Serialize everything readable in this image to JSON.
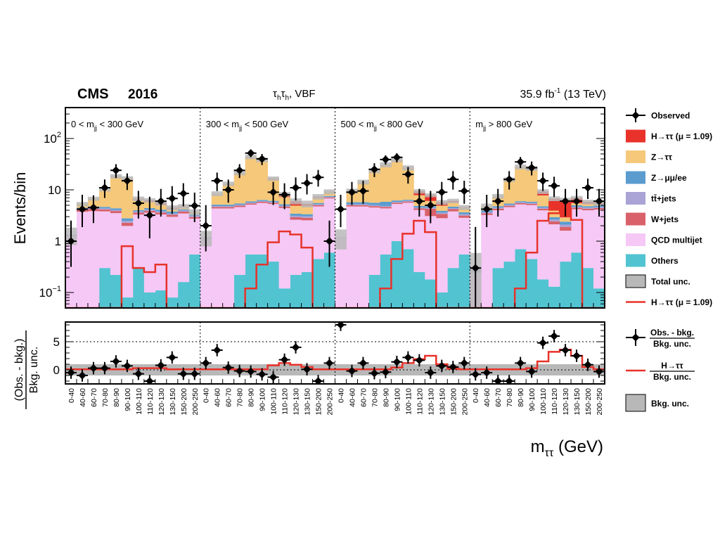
{
  "header": {
    "experiment": "CMS",
    "year": "2016",
    "channel_tau1": "τ",
    "channel_sub1": "h",
    "channel_tau2": "τ",
    "channel_sub2": "h",
    "channel_suffix": ", VBF",
    "lumi_value": "35.9 fb",
    "lumi_exp": "-1",
    "lumi_energy": " (13 TeV)"
  },
  "axes": {
    "ylabel_top": "Events/bin",
    "ylabel_bottom_num": "(Obs. - bkg.)",
    "ylabel_bottom_den": "Bkg. unc.",
    "xlabel_main": "m",
    "xlabel_sub": "ττ",
    "xlabel_unit": " (GeV)",
    "top_ticks": [
      {
        "value": 0.1,
        "base": "10",
        "exp": "−1",
        "plain": ""
      },
      {
        "value": 1,
        "base": "",
        "exp": "",
        "plain": "1"
      },
      {
        "value": 10,
        "base": "",
        "exp": "",
        "plain": "10"
      },
      {
        "value": 100,
        "base": "10",
        "exp": "2",
        "plain": ""
      }
    ],
    "bottom_ticks": [
      "0",
      "5"
    ],
    "bin_labels": [
      "0-40",
      "40-60",
      "60-70",
      "70-80",
      "80-90",
      "90-100",
      "100-110",
      "110-120",
      "120-130",
      "130-150",
      "150-200",
      "200-250"
    ]
  },
  "regions": [
    {
      "pre": "0 < m",
      "sub": "jj",
      "post": " < 300 GeV"
    },
    {
      "pre": "300 < m",
      "sub": "jj",
      "post": " < 500 GeV"
    },
    {
      "pre": "500 < m",
      "sub": "jj",
      "post": " < 800 GeV"
    },
    {
      "pre": "m",
      "sub": "jj",
      "post": " > 800 GeV"
    }
  ],
  "legend_top": [
    {
      "label": "Observed",
      "kind": "marker"
    },
    {
      "label": "H→ττ (μ = 1.09)",
      "kind": "fill",
      "color": "#e8322a"
    },
    {
      "label": "Z→ττ",
      "kind": "fill",
      "color": "#f5c87a"
    },
    {
      "label": "Z→μμ/ee",
      "kind": "fill",
      "color": "#5a9cd0"
    },
    {
      "label": "tt̄+jets",
      "kind": "fill",
      "color": "#a9a3d6"
    },
    {
      "label": "W+jets",
      "kind": "fill",
      "color": "#d9616a"
    },
    {
      "label": "QCD multijet",
      "kind": "fill",
      "color": "#f5c8f5"
    },
    {
      "label": "Others",
      "kind": "fill",
      "color": "#52c3d1"
    },
    {
      "label": "Total unc.",
      "kind": "fill",
      "color": "#b8b8b8"
    },
    {
      "label": "H→ττ (μ = 1.09)",
      "kind": "line",
      "color": "#e8322a"
    }
  ],
  "legend_bottom": [
    {
      "num": "Obs. - bkg.",
      "den": "Bkg. unc.",
      "kind": "marker"
    },
    {
      "num": "H→ττ",
      "den": "Bkg. unc.",
      "kind": "line",
      "color": "#e8322a"
    },
    {
      "label": "Bkg. unc.",
      "kind": "fill",
      "color": "#b8b8b8"
    }
  ],
  "chart_data": {
    "type": "bar",
    "stacked": true,
    "yscale": "log",
    "ylim": [
      0.05,
      400
    ],
    "ratio_ylim": [
      -2.5,
      8.5
    ],
    "bins_per_region": 12,
    "grid": false,
    "legend_placement": "right",
    "colors": {
      "others": "#52c3d1",
      "qcd": "#f5c8f5",
      "wjets": "#d9616a",
      "ttjets": "#a9a3d6",
      "zll": "#5a9cd0",
      "ztt": "#f5c87a",
      "htt": "#e8322a",
      "unc": "#b8b8b8"
    },
    "series": [
      {
        "name": "Others",
        "key": "others",
        "values": [
          0.04,
          0.04,
          0.04,
          0.3,
          0.22,
          0.08,
          0.3,
          0.1,
          0.11,
          0.08,
          0.16,
          0.55,
          0.04,
          0.04,
          0.04,
          0.22,
          0.55,
          0.55,
          0.4,
          0.12,
          0.22,
          0.25,
          0.45,
          0.6,
          0.04,
          0.04,
          0.04,
          0.22,
          0.55,
          1.0,
          0.7,
          0.25,
          0.18,
          0.1,
          0.3,
          0.55,
          0.04,
          0.04,
          0.3,
          0.4,
          0.7,
          0.45,
          0.18,
          0.13,
          0.4,
          0.6,
          0.3,
          0.12
        ]
      },
      {
        "name": "QCD multijet",
        "key": "qcd",
        "values": [
          1.2,
          3.7,
          3.8,
          3.5,
          3.3,
          1.9,
          3.0,
          3.5,
          3.2,
          2.9,
          3.3,
          2.2,
          1.1,
          4.3,
          4.3,
          4.4,
          4.6,
          5.0,
          4.9,
          4.3,
          2.4,
          2.3,
          4.3,
          6.2,
          1.1,
          4.7,
          4.7,
          4.3,
          3.8,
          4.3,
          4.9,
          3.8,
          2.9,
          2.7,
          3.5,
          2.3,
          0.2,
          3.2,
          3.7,
          4.2,
          4.5,
          4.6,
          3.8,
          2.0,
          1.2,
          3.6,
          3.7,
          4.0
        ]
      },
      {
        "name": "W+jets",
        "key": "wjets",
        "values": [
          0,
          0.35,
          0.4,
          0.35,
          0.35,
          0.3,
          0.3,
          0.3,
          0.3,
          0.3,
          0.3,
          0.2,
          0,
          0.3,
          0.3,
          0.3,
          0.3,
          0.3,
          0.3,
          0.3,
          0.3,
          0.3,
          0.3,
          0.3,
          0,
          0.3,
          0.3,
          0.3,
          0.3,
          0.3,
          0.3,
          0.3,
          1.2,
          0.6,
          0.4,
          0.3,
          0,
          0.25,
          0.3,
          0.3,
          0.3,
          0.3,
          0.3,
          0.3,
          0.3,
          0.3,
          0.3,
          0.3
        ]
      },
      {
        "name": "tt̄+jets",
        "key": "ttjets",
        "values": [
          0.1,
          0.2,
          0.2,
          0.2,
          0.2,
          0.2,
          0.2,
          0.2,
          0.2,
          0.2,
          0.2,
          0.2,
          0.05,
          0.2,
          0.2,
          0.2,
          0.2,
          0.2,
          0.2,
          0.2,
          0.2,
          0.2,
          0.2,
          0.2,
          0.05,
          0.2,
          0.2,
          0.2,
          0.2,
          0.2,
          0.2,
          0.2,
          0.2,
          0.2,
          0.2,
          0.2,
          0.05,
          0.2,
          0.2,
          0.2,
          0.2,
          0.2,
          0.2,
          0.2,
          0.2,
          0.2,
          0.2,
          0.2
        ]
      },
      {
        "name": "Z→μμ/ee",
        "key": "zll",
        "values": [
          0,
          0.2,
          0.3,
          0.3,
          0.3,
          0.3,
          0.2,
          0.3,
          0.3,
          0.3,
          0.2,
          0.2,
          0,
          0.3,
          0.3,
          0.3,
          0.3,
          0.3,
          0.3,
          0.3,
          0.3,
          0.3,
          0.3,
          0.3,
          0,
          0.5,
          0.5,
          0.6,
          1.0,
          0.4,
          0.3,
          0.3,
          0.3,
          0.3,
          0.3,
          0.3,
          0,
          0.3,
          0.3,
          0.3,
          0.3,
          0.3,
          0.3,
          0.3,
          0.3,
          0.3,
          0.3,
          0.3
        ]
      },
      {
        "name": "Z→ττ",
        "key": "ztt",
        "values": [
          0,
          0.8,
          2.0,
          5.5,
          14.0,
          14.0,
          2.5,
          1.5,
          1.0,
          0.5,
          0.5,
          0.3,
          0,
          3.3,
          8.0,
          16.0,
          38.0,
          32.0,
          10.0,
          2.0,
          1.5,
          1.5,
          1.5,
          1.5,
          0,
          3.8,
          8.5,
          18.0,
          25.0,
          32.0,
          20.0,
          3.0,
          1.3,
          1.0,
          1.0,
          0.8,
          0,
          0.8,
          2.7,
          10.5,
          22.0,
          20.0,
          3.0,
          1.0,
          0.5,
          0.5,
          0.5,
          0.5
        ]
      },
      {
        "name": "H→ττ (μ = 1.09)",
        "key": "htt",
        "values": [
          0,
          0,
          0,
          0,
          0.05,
          0.1,
          0.2,
          0.35,
          0.4,
          0.2,
          0.1,
          0.05,
          0,
          0,
          0,
          0,
          0.1,
          0.2,
          0.5,
          1.0,
          1.1,
          0.5,
          0.3,
          0.1,
          0,
          0,
          0,
          0,
          0.1,
          0.2,
          0.5,
          1.5,
          1.8,
          0.8,
          0.4,
          0.1,
          0,
          0,
          0,
          0,
          0.1,
          0.3,
          1.5,
          2.8,
          3.5,
          1.5,
          0.5,
          0.2
        ]
      }
    ],
    "total_unc_values": [
      0.5,
      0.5,
      0.6,
      0.8,
      1.8,
      1.5,
      0.7,
      0.6,
      0.6,
      0.5,
      0.5,
      0.5,
      0.4,
      0.9,
      1.3,
      2.2,
      4.5,
      4.0,
      1.6,
      0.8,
      0.8,
      0.8,
      0.9,
      1.0,
      0.5,
      1.0,
      1.5,
      2.5,
      3.5,
      4.0,
      3.0,
      0.9,
      0.7,
      0.6,
      0.6,
      0.5,
      0.3,
      0.6,
      0.8,
      1.6,
      3.0,
      2.8,
      1.0,
      0.7,
      0.6,
      0.6,
      0.6,
      0.6
    ],
    "signal_line_values": [
      0.045,
      0.045,
      0.045,
      0.045,
      0.045,
      0.8,
      0.3,
      0.25,
      0.35,
      0.045,
      0.045,
      0.045,
      0.045,
      0.045,
      0.045,
      0.045,
      0.12,
      0.35,
      0.95,
      1.55,
      1.35,
      0.75,
      0.045,
      0.045,
      0.045,
      0.045,
      0.045,
      0.045,
      0.12,
      0.45,
      1.4,
      2.5,
      1.5,
      0.045,
      0.045,
      0.045,
      0.045,
      0.045,
      0.045,
      0.045,
      0.12,
      0.6,
      2.5,
      3.5,
      4.0,
      2.6,
      0.045,
      0.045
    ],
    "observed_values": [
      1.0,
      4.2,
      4.5,
      11.0,
      24.0,
      15.0,
      5.5,
      3.2,
      6.0,
      6.8,
      8.5,
      4.9,
      2.0,
      15.0,
      10.0,
      24.0,
      52.0,
      40.0,
      9.0,
      8.0,
      11.0,
      13.5,
      17.5,
      1.0,
      4.2,
      9.0,
      9.5,
      25.0,
      39.0,
      43.0,
      20.0,
      6.0,
      5.0,
      9.0,
      16.0,
      9.5,
      0.3,
      4.2,
      6.0,
      16.0,
      35.0,
      27.0,
      15.0,
      12.0,
      6.0,
      6.0,
      11.0,
      6.0
    ],
    "observed_errors_log_down": [
      0.5,
      0.35,
      0.3,
      0.2,
      0.15,
      0.18,
      0.3,
      0.45,
      0.3,
      0.3,
      0.25,
      0.32,
      0.5,
      0.2,
      0.25,
      0.15,
      0.08,
      0.12,
      0.25,
      0.28,
      0.25,
      0.22,
      0.18,
      0.5,
      0.35,
      0.25,
      0.25,
      0.15,
      0.1,
      0.1,
      0.18,
      0.3,
      0.35,
      0.25,
      0.2,
      0.25,
      1.0,
      0.35,
      0.3,
      0.2,
      0.12,
      0.15,
      0.2,
      0.22,
      0.3,
      0.3,
      0.22,
      0.3
    ],
    "ratio_observed": [
      -0.5,
      -1.0,
      0.3,
      0.3,
      1.5,
      0.7,
      -0.7,
      -2.0,
      0.8,
      2.2,
      -0.7,
      -0.7,
      1.2,
      3.5,
      0.4,
      -0.2,
      -0.3,
      -0.8,
      -1.3,
      1.8,
      4.0,
      0.1,
      -2.0,
      1.2,
      8.0,
      -0.2,
      1.2,
      -0.6,
      -0.4,
      1.4,
      2.2,
      1.7,
      -0.5,
      0.7,
      0.5,
      1.2,
      -0.8,
      -0.5,
      -2.0,
      -2.0,
      1.2,
      -0.3,
      4.8,
      6.0,
      3.5,
      2.5,
      0.9,
      -0.3
    ],
    "ratio_signal": [
      0.1,
      0.1,
      0.1,
      0.1,
      0.1,
      0.1,
      0.3,
      0.3,
      0.3,
      0.1,
      0.1,
      0.1,
      0.1,
      0.1,
      0.1,
      0.1,
      0.1,
      0.1,
      0.8,
      1.2,
      0.9,
      0.5,
      0.1,
      0.1,
      0.1,
      0.1,
      0.1,
      0.1,
      0.1,
      0.4,
      1.2,
      1.9,
      2.5,
      1.0,
      0.2,
      0.1,
      0.1,
      0.1,
      0.1,
      0.1,
      0.1,
      0.3,
      1.5,
      3.2,
      3.6,
      2.5,
      0.5,
      0.1
    ],
    "ratio_unc": 1.0
  }
}
